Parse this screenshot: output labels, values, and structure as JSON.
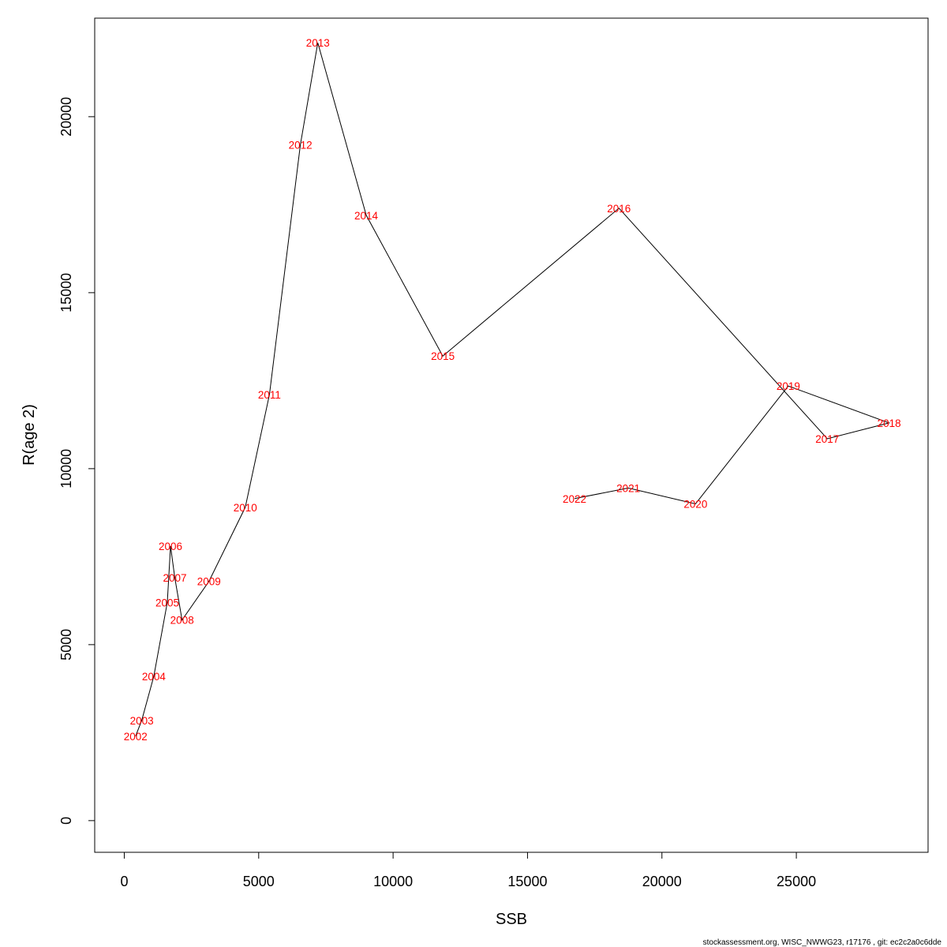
{
  "chart_data": {
    "type": "line",
    "xlabel": "SSB",
    "ylabel": "R(age 2)",
    "xlim": [
      -1100,
      29900
    ],
    "ylim": [
      -900,
      22800
    ],
    "xticks": [
      0,
      5000,
      10000,
      15000,
      20000,
      25000
    ],
    "yticks": [
      0,
      5000,
      10000,
      15000,
      20000
    ],
    "xtick_labels": [
      "0",
      "5000",
      "10000",
      "15000",
      "20000",
      "25000"
    ],
    "ytick_labels": [
      "0",
      "5000",
      "10000",
      "15000",
      "20000"
    ],
    "line_color": "#000000",
    "label_color": "#ff0000",
    "grid": false,
    "points": [
      {
        "label": "2002",
        "x": 420,
        "y": 2400
      },
      {
        "label": "2003",
        "x": 650,
        "y": 2850
      },
      {
        "label": "2004",
        "x": 1100,
        "y": 4100
      },
      {
        "label": "2005",
        "x": 1600,
        "y": 6200
      },
      {
        "label": "2006",
        "x": 1720,
        "y": 7800
      },
      {
        "label": "2007",
        "x": 1880,
        "y": 6900
      },
      {
        "label": "2008",
        "x": 2150,
        "y": 5700
      },
      {
        "label": "2009",
        "x": 3150,
        "y": 6800
      },
      {
        "label": "2010",
        "x": 4500,
        "y": 8900
      },
      {
        "label": "2011",
        "x": 5400,
        "y": 12100
      },
      {
        "label": "2012",
        "x": 6550,
        "y": 19200
      },
      {
        "label": "2013",
        "x": 7200,
        "y": 22100
      },
      {
        "label": "2014",
        "x": 9000,
        "y": 17200
      },
      {
        "label": "2015",
        "x": 11850,
        "y": 13200
      },
      {
        "label": "2016",
        "x": 18400,
        "y": 17400
      },
      {
        "label": "2017",
        "x": 26150,
        "y": 10850
      },
      {
        "label": "2018",
        "x": 28450,
        "y": 11300
      },
      {
        "label": "2019",
        "x": 24700,
        "y": 12350
      },
      {
        "label": "2020",
        "x": 21250,
        "y": 9000
      },
      {
        "label": "2021",
        "x": 18750,
        "y": 9450
      },
      {
        "label": "2022",
        "x": 16750,
        "y": 9150
      }
    ]
  },
  "footer_text": "stockassessment.org, WISC_NWWG23, r17176 , git: ec2c2a0c6dde"
}
